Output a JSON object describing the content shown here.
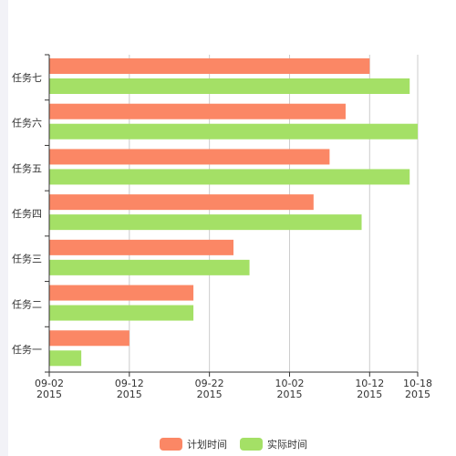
{
  "chart_data": {
    "type": "bar",
    "orientation": "horizontal",
    "categories": [
      "任务一",
      "任务二",
      "任务三",
      "任务四",
      "任务五",
      "任务六",
      "任务七"
    ],
    "series": [
      {
        "name": "计划时间",
        "color": "#fb8765",
        "values": [
          "2015-09-12",
          "2015-09-20",
          "2015-09-25",
          "2015-10-05",
          "2015-10-07",
          "2015-10-09",
          "2015-10-12"
        ]
      },
      {
        "name": "实际时间",
        "color": "#a4e066",
        "values": [
          "2015-09-06",
          "2015-09-20",
          "2015-09-27",
          "2015-10-11",
          "2015-10-17",
          "2015-10-18",
          "2015-10-17"
        ]
      }
    ],
    "xlim": [
      "2015-09-02",
      "2015-10-18"
    ],
    "xticks": [
      {
        "date": "2015-09-02",
        "label_top": "09-02",
        "label_bottom": "2015"
      },
      {
        "date": "2015-09-12",
        "label_top": "09-12",
        "label_bottom": "2015"
      },
      {
        "date": "2015-09-22",
        "label_top": "09-22",
        "label_bottom": "2015"
      },
      {
        "date": "2015-10-02",
        "label_top": "10-02",
        "label_bottom": "2015"
      },
      {
        "date": "2015-10-12",
        "label_top": "10-12",
        "label_bottom": "2015"
      },
      {
        "date": "2015-10-18",
        "label_top": "10-18",
        "label_bottom": "2015"
      }
    ],
    "grid": true,
    "legend_position": "bottom",
    "title": "",
    "xlabel": "",
    "ylabel": ""
  }
}
